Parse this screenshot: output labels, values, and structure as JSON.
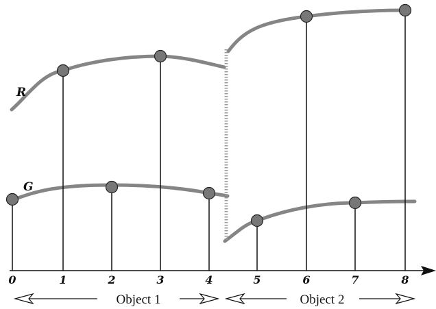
{
  "diagram": {
    "x_axis": {
      "ticks": [
        "0",
        "1",
        "2",
        "3",
        "4",
        "5",
        "6",
        "7",
        "8"
      ]
    },
    "curves": {
      "R": {
        "label": "R"
      },
      "G": {
        "label": "G"
      }
    },
    "objects": [
      {
        "label": "Object 1"
      },
      {
        "label": "Object 2"
      }
    ],
    "colors": {
      "curve": "#858585",
      "marker": "#777777",
      "ink": "#111111"
    }
  }
}
